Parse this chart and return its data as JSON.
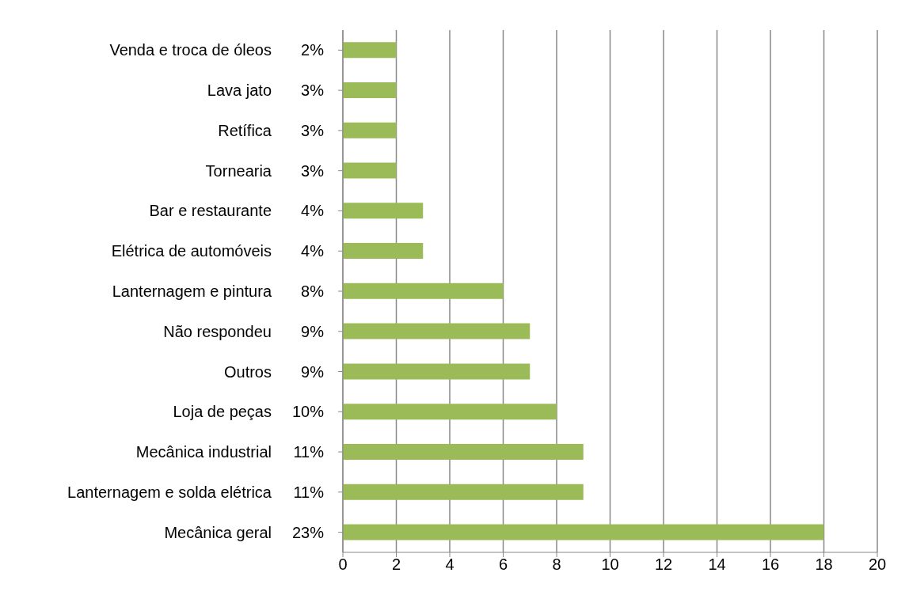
{
  "chart_data": {
    "type": "bar",
    "orientation": "horizontal",
    "categories": [
      "Venda e troca de óleos",
      "Lava jato",
      "Retífica",
      "Tornearia",
      "Bar e restaurante",
      "Elétrica de automóveis",
      "Lanternagem e pintura",
      "Não respondeu",
      "Outros",
      "Loja de peças",
      "Mecânica industrial",
      "Lanternagem e solda elétrica",
      "Mecânica geral"
    ],
    "values": [
      2,
      2,
      2,
      2,
      3,
      3,
      6,
      7,
      7,
      8,
      9,
      9,
      18
    ],
    "annotations": [
      "2%",
      "3%",
      "3%",
      "3%",
      "4%",
      "4%",
      "8%",
      "9%",
      "9%",
      "10%",
      "11%",
      "11%",
      "23%"
    ],
    "color": "#9bbb59",
    "xlim": [
      0,
      20
    ],
    "xticks": [
      0,
      2,
      4,
      6,
      8,
      10,
      12,
      14,
      16,
      18,
      20
    ],
    "grid": "x"
  }
}
